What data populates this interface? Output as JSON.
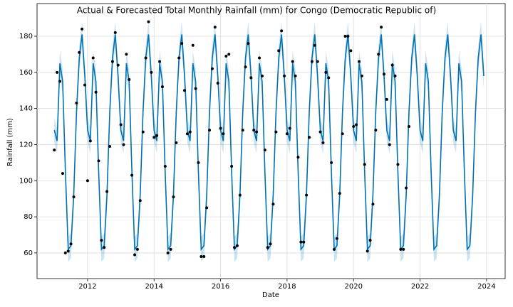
{
  "chart_data": {
    "type": "forecast",
    "title": "Actual & Forecasted Total Monthly Rainfall (mm) for Congo (Democratic Republic of)",
    "x_label": "Date",
    "y_label": "Rainfall (mm)",
    "xlim": [
      2010.48,
      2024.56
    ],
    "xticks": [
      2012,
      2014,
      2016,
      2018,
      2020,
      2022,
      2024
    ],
    "ylim": [
      45.8,
      198.1
    ],
    "yticks": [
      60,
      80,
      100,
      120,
      140,
      160,
      180
    ],
    "grid": true,
    "x": [
      2011,
      2011.083,
      2011.167,
      2011.25,
      2011.333,
      2011.417,
      2011.5,
      2011.583,
      2011.667,
      2011.75,
      2011.833,
      2011.917,
      2012,
      2012.083,
      2012.167,
      2012.25,
      2012.333,
      2012.417,
      2012.5,
      2012.583,
      2012.667,
      2012.75,
      2012.833,
      2012.917,
      2013,
      2013.083,
      2013.167,
      2013.25,
      2013.333,
      2013.417,
      2013.5,
      2013.583,
      2013.667,
      2013.75,
      2013.833,
      2013.917,
      2014,
      2014.083,
      2014.167,
      2014.25,
      2014.333,
      2014.417,
      2014.5,
      2014.583,
      2014.667,
      2014.75,
      2014.833,
      2014.917,
      2015,
      2015.083,
      2015.167,
      2015.25,
      2015.333,
      2015.417,
      2015.5,
      2015.583,
      2015.667,
      2015.75,
      2015.833,
      2015.917,
      2016,
      2016.083,
      2016.167,
      2016.25,
      2016.333,
      2016.417,
      2016.5,
      2016.583,
      2016.667,
      2016.75,
      2016.833,
      2016.917,
      2017,
      2017.083,
      2017.167,
      2017.25,
      2017.333,
      2017.417,
      2017.5,
      2017.583,
      2017.667,
      2017.75,
      2017.833,
      2017.917,
      2018,
      2018.083,
      2018.167,
      2018.25,
      2018.333,
      2018.417,
      2018.5,
      2018.583,
      2018.667,
      2018.75,
      2018.833,
      2018.917,
      2019,
      2019.083,
      2019.167,
      2019.25,
      2019.333,
      2019.417,
      2019.5,
      2019.583,
      2019.667,
      2019.75,
      2019.833,
      2019.917,
      2020,
      2020.083,
      2020.167,
      2020.25,
      2020.333,
      2020.417,
      2020.5,
      2020.583,
      2020.667,
      2020.75,
      2020.833,
      2020.917,
      2021,
      2021.083,
      2021.167,
      2021.25,
      2021.333,
      2021.417,
      2021.5,
      2021.583,
      2021.667,
      2021.75,
      2021.833,
      2021.917,
      2022,
      2022.083,
      2022.167,
      2022.25,
      2022.333,
      2022.417,
      2022.5,
      2022.583,
      2022.667,
      2022.75,
      2022.833,
      2022.917,
      2023,
      2023.083,
      2023.167,
      2023.25,
      2023.333,
      2023.417,
      2023.5,
      2023.583,
      2023.667,
      2023.75,
      2023.833,
      2023.917
    ],
    "forecast": {
      "color": "#0072B2",
      "values": [
        128,
        122,
        165,
        155,
        105,
        62,
        64,
        92,
        138,
        168,
        181,
        158,
        128,
        122,
        165,
        155,
        105,
        62,
        64,
        92,
        138,
        168,
        181,
        158,
        128,
        122,
        165,
        155,
        105,
        62,
        64,
        92,
        138,
        168,
        181,
        158,
        128,
        122,
        165,
        155,
        105,
        62,
        64,
        92,
        138,
        168,
        181,
        158,
        128,
        122,
        165,
        155,
        105,
        62,
        64,
        92,
        138,
        168,
        181,
        158,
        128,
        122,
        165,
        155,
        105,
        62,
        64,
        92,
        138,
        168,
        181,
        158,
        128,
        122,
        165,
        155,
        105,
        62,
        64,
        92,
        138,
        168,
        181,
        158,
        128,
        122,
        165,
        155,
        105,
        62,
        64,
        92,
        138,
        168,
        181,
        158,
        128,
        122,
        165,
        155,
        105,
        62,
        64,
        92,
        138,
        168,
        181,
        158,
        128,
        122,
        165,
        155,
        105,
        62,
        64,
        92,
        138,
        168,
        181,
        158,
        128,
        122,
        165,
        155,
        105,
        62,
        64,
        92,
        138,
        168,
        181,
        158,
        128,
        122,
        165,
        155,
        105,
        62,
        64,
        92,
        138,
        168,
        181,
        158,
        128,
        122,
        165,
        155,
        105,
        62,
        64,
        92,
        138,
        168,
        181,
        158
      ]
    },
    "interval": {
      "color": "#0072B2",
      "lower": [
        121,
        115,
        158,
        148,
        98,
        55,
        57,
        85,
        131,
        161,
        174,
        151,
        121,
        115,
        158,
        148,
        98,
        55,
        57,
        85,
        131,
        161,
        174,
        151,
        121,
        115,
        158,
        148,
        98,
        55,
        57,
        85,
        131,
        161,
        174,
        151,
        121,
        115,
        158,
        148,
        98,
        55,
        57,
        85,
        131,
        161,
        174,
        151,
        121,
        115,
        158,
        148,
        98,
        55,
        57,
        85,
        131,
        161,
        174,
        151,
        121,
        115,
        158,
        148,
        98,
        55,
        57,
        85,
        131,
        161,
        174,
        151,
        121,
        115,
        158,
        148,
        98,
        55,
        57,
        85,
        131,
        161,
        174,
        151,
        121,
        115,
        158,
        148,
        98,
        55,
        57,
        85,
        131,
        161,
        174,
        151,
        121,
        115,
        158,
        148,
        98,
        55,
        57,
        85,
        131,
        161,
        174,
        151,
        121,
        115,
        158,
        148,
        98,
        55,
        57,
        85,
        131,
        161,
        174,
        151,
        121,
        115,
        158,
        148,
        98,
        55,
        57,
        85,
        131,
        161,
        174,
        151,
        121,
        115,
        158,
        148,
        98,
        55,
        57,
        85,
        131,
        161,
        174,
        151,
        121,
        115,
        158,
        148,
        98,
        55,
        57,
        85,
        131,
        161,
        174,
        151
      ],
      "upper": [
        135,
        129,
        172,
        162,
        112,
        69,
        71,
        99,
        145,
        175,
        188,
        165,
        135,
        129,
        172,
        162,
        112,
        69,
        71,
        99,
        145,
        175,
        188,
        165,
        135,
        129,
        172,
        162,
        112,
        69,
        71,
        99,
        145,
        175,
        188,
        165,
        135,
        129,
        172,
        162,
        112,
        69,
        71,
        99,
        145,
        175,
        188,
        165,
        135,
        129,
        172,
        162,
        112,
        69,
        71,
        99,
        145,
        175,
        188,
        165,
        135,
        129,
        172,
        162,
        112,
        69,
        71,
        99,
        145,
        175,
        188,
        165,
        135,
        129,
        172,
        162,
        112,
        69,
        71,
        99,
        145,
        175,
        188,
        165,
        135,
        129,
        172,
        162,
        112,
        69,
        71,
        99,
        145,
        175,
        188,
        165,
        135,
        129,
        172,
        162,
        112,
        69,
        71,
        99,
        145,
        175,
        188,
        165,
        135,
        129,
        172,
        162,
        112,
        69,
        71,
        99,
        145,
        175,
        188,
        165,
        135,
        129,
        172,
        162,
        112,
        69,
        71,
        99,
        145,
        175,
        188,
        165,
        135,
        129,
        172,
        162,
        112,
        69,
        71,
        99,
        145,
        175,
        188,
        165,
        135,
        129,
        172,
        162,
        112,
        69,
        71,
        99,
        145,
        175,
        188,
        165
      ]
    },
    "actual": {
      "color": "#000000",
      "values": [
        117,
        160,
        155,
        104,
        60,
        61,
        65,
        91,
        143,
        171,
        184,
        153,
        100,
        122,
        168,
        149,
        111,
        67,
        63,
        94,
        119,
        166,
        182,
        164,
        131,
        120,
        170,
        156,
        103,
        59,
        62,
        89,
        127,
        168,
        188,
        160,
        124,
        125,
        166,
        152,
        108,
        60,
        62,
        91,
        121,
        168,
        176,
        150,
        126,
        127,
        175,
        151,
        110,
        58,
        58,
        85,
        128,
        162,
        185,
        154,
        129,
        126,
        169,
        170,
        108,
        63,
        64,
        92,
        128,
        163,
        176,
        157,
        128,
        127,
        168,
        158,
        117,
        63,
        65,
        87,
        127,
        172,
        183,
        158,
        126,
        129,
        166,
        158,
        113,
        66,
        66,
        92,
        124,
        166,
        175,
        166,
        127,
        121,
        160,
        157,
        110,
        62,
        68,
        93,
        126,
        180,
        180,
        172,
        130,
        131,
        166,
        158,
        109,
        61,
        67,
        87,
        128,
        170,
        185,
        159,
        145,
        120,
        164,
        158,
        109,
        62,
        62,
        96,
        130,
        null,
        null,
        null,
        null,
        null,
        null,
        null,
        null,
        null,
        null,
        null,
        null,
        null,
        null,
        null,
        null,
        null,
        null,
        null,
        null,
        null,
        null,
        null,
        null,
        null,
        null,
        null
      ]
    }
  }
}
